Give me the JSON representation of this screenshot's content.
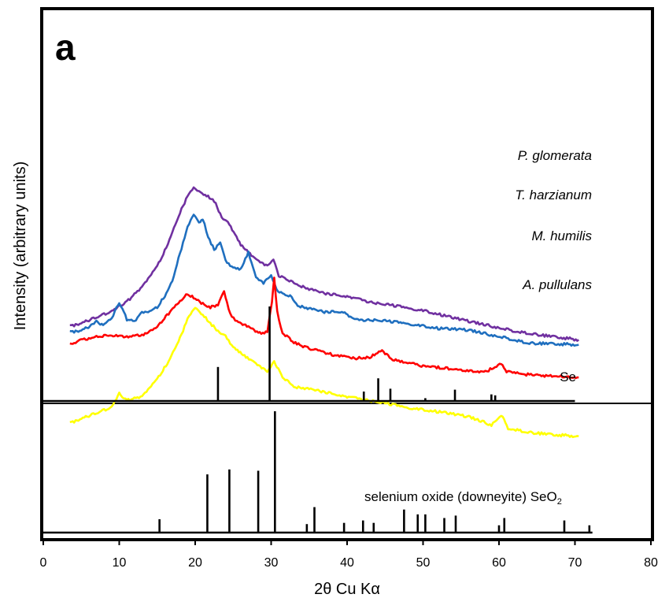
{
  "chart_data": {
    "type": "line",
    "panel_label": "a",
    "xlabel": "2θ Cu Kα",
    "ylabel": "Intensity (arbitrary units)",
    "xlim": [
      0,
      80
    ],
    "xticks": [
      0,
      10,
      20,
      30,
      40,
      50,
      60,
      70,
      80
    ],
    "colors": {
      "P. glomerata": "#7030a0",
      "T. harzianum": "#1f6fbf",
      "M. humilis": "#ff0000",
      "A. pullulans": "#ffff00"
    },
    "series": [
      {
        "name": "P. glomerata",
        "color": "#7030a0",
        "x": [
          3.5,
          5,
          7,
          9,
          11,
          13,
          15,
          16,
          17,
          18,
          19,
          19.8,
          20.5,
          21.5,
          22.5,
          23.5,
          24.5,
          26,
          28,
          29.5,
          30.3,
          31,
          33,
          35,
          37,
          40,
          43,
          46,
          50,
          54,
          58,
          62,
          66,
          70.5
        ],
        "y": [
          0.86,
          0.97,
          1.13,
          1.33,
          1.62,
          2.05,
          2.7,
          3.18,
          3.75,
          4.33,
          4.86,
          5.1,
          5.0,
          4.86,
          4.7,
          4.2,
          3.98,
          3.35,
          2.9,
          2.72,
          2.94,
          2.42,
          2.18,
          2.0,
          1.87,
          1.77,
          1.6,
          1.5,
          1.35,
          1.12,
          0.92,
          0.72,
          0.58,
          0.45
        ]
      },
      {
        "name": "T. harzianum",
        "color": "#1f6fbf",
        "x": [
          3.5,
          5,
          6.5,
          7,
          7.5,
          9,
          10,
          11,
          12,
          13,
          14,
          15,
          16,
          17,
          18,
          19,
          19.8,
          20.5,
          21,
          21.7,
          22.5,
          23.3,
          24,
          25,
          26,
          27,
          28,
          29,
          30,
          30.7,
          31.5,
          32.5,
          33.5,
          35,
          37,
          39.5,
          41,
          44,
          48,
          52,
          56,
          60,
          64,
          68,
          70.5
        ],
        "y": [
          0.68,
          0.75,
          0.9,
          1.05,
          0.88,
          1.1,
          1.6,
          1.08,
          1.0,
          1.28,
          1.3,
          1.45,
          1.8,
          2.25,
          3.1,
          3.9,
          4.3,
          4.05,
          4.15,
          3.6,
          3.2,
          3.45,
          2.85,
          2.65,
          2.6,
          3.12,
          2.35,
          2.2,
          2.45,
          2.0,
          1.85,
          1.78,
          1.5,
          1.4,
          1.3,
          1.3,
          1.05,
          1.05,
          0.95,
          0.8,
          0.75,
          0.55,
          0.35,
          0.32,
          0.3
        ]
      },
      {
        "name": "M. humilis",
        "color": "#ff0000",
        "x": [
          3.5,
          5,
          7,
          9,
          11,
          13,
          15,
          16.5,
          18,
          19,
          20,
          21,
          22,
          23,
          23.8,
          24.6,
          25.5,
          27,
          28.5,
          29.5,
          30.1,
          30.4,
          30.8,
          31.5,
          33,
          35,
          38,
          41,
          43,
          44.6,
          46,
          48,
          50,
          53,
          56,
          58,
          60.3,
          61,
          63,
          66,
          70.5
        ],
        "y": [
          0.3,
          0.45,
          0.55,
          0.58,
          0.55,
          0.6,
          0.85,
          1.25,
          1.65,
          1.85,
          1.72,
          1.55,
          1.45,
          1.5,
          1.95,
          1.25,
          1.0,
          0.85,
          0.65,
          0.7,
          1.6,
          2.35,
          1.3,
          0.65,
          0.38,
          0.18,
          0.0,
          -0.12,
          -0.08,
          0.12,
          -0.15,
          -0.25,
          -0.35,
          -0.42,
          -0.5,
          -0.55,
          -0.28,
          -0.52,
          -0.6,
          -0.65,
          -0.7
        ]
      },
      {
        "name": "A. pullulans",
        "color": "#ffff00",
        "x": [
          3.5,
          5,
          7,
          9,
          10,
          11,
          13,
          15,
          16.5,
          18,
          19,
          20,
          21,
          22,
          23,
          24,
          25,
          26.5,
          28,
          29.5,
          30.4,
          31.5,
          33,
          36,
          40,
          44,
          48,
          52,
          56,
          59,
          60.3,
          61.2,
          64,
          67,
          70.5
        ],
        "y": [
          -2.1,
          -1.95,
          -1.8,
          -1.6,
          -1.2,
          -1.4,
          -1.3,
          -0.75,
          -0.2,
          0.5,
          1.1,
          1.45,
          1.22,
          0.95,
          0.72,
          0.55,
          0.22,
          -0.05,
          -0.28,
          -0.5,
          -0.2,
          -0.7,
          -0.98,
          -1.1,
          -1.3,
          -1.45,
          -1.62,
          -1.75,
          -1.9,
          -2.15,
          -1.85,
          -2.25,
          -2.38,
          -2.45,
          -2.5
        ]
      }
    ],
    "references": [
      {
        "name": "Se",
        "peaks": [
          {
            "x": 23,
            "h": 0.36
          },
          {
            "x": 29.8,
            "h": 1.0
          },
          {
            "x": 42.2,
            "h": 0.1
          },
          {
            "x": 44.1,
            "h": 0.24
          },
          {
            "x": 45.7,
            "h": 0.13
          },
          {
            "x": 50.3,
            "h": 0.03
          },
          {
            "x": 54.2,
            "h": 0.12
          },
          {
            "x": 59.0,
            "h": 0.07
          },
          {
            "x": 59.5,
            "h": 0.06
          }
        ]
      },
      {
        "name": "selenium oxide (downeyite) SeO",
        "name_subscript": "2",
        "peaks": [
          {
            "x": 15.3,
            "h": 0.11
          },
          {
            "x": 21.6,
            "h": 0.48
          },
          {
            "x": 24.5,
            "h": 0.52
          },
          {
            "x": 28.3,
            "h": 0.51
          },
          {
            "x": 30.5,
            "h": 1.0
          },
          {
            "x": 34.7,
            "h": 0.07
          },
          {
            "x": 35.7,
            "h": 0.21
          },
          {
            "x": 39.6,
            "h": 0.08
          },
          {
            "x": 42.1,
            "h": 0.1
          },
          {
            "x": 43.5,
            "h": 0.08
          },
          {
            "x": 47.5,
            "h": 0.19
          },
          {
            "x": 49.3,
            "h": 0.15
          },
          {
            "x": 50.3,
            "h": 0.15
          },
          {
            "x": 52.8,
            "h": 0.12
          },
          {
            "x": 54.3,
            "h": 0.14
          },
          {
            "x": 60.0,
            "h": 0.06
          },
          {
            "x": 60.7,
            "h": 0.12
          },
          {
            "x": 68.6,
            "h": 0.1
          },
          {
            "x": 71.9,
            "h": 0.06
          }
        ]
      }
    ]
  }
}
